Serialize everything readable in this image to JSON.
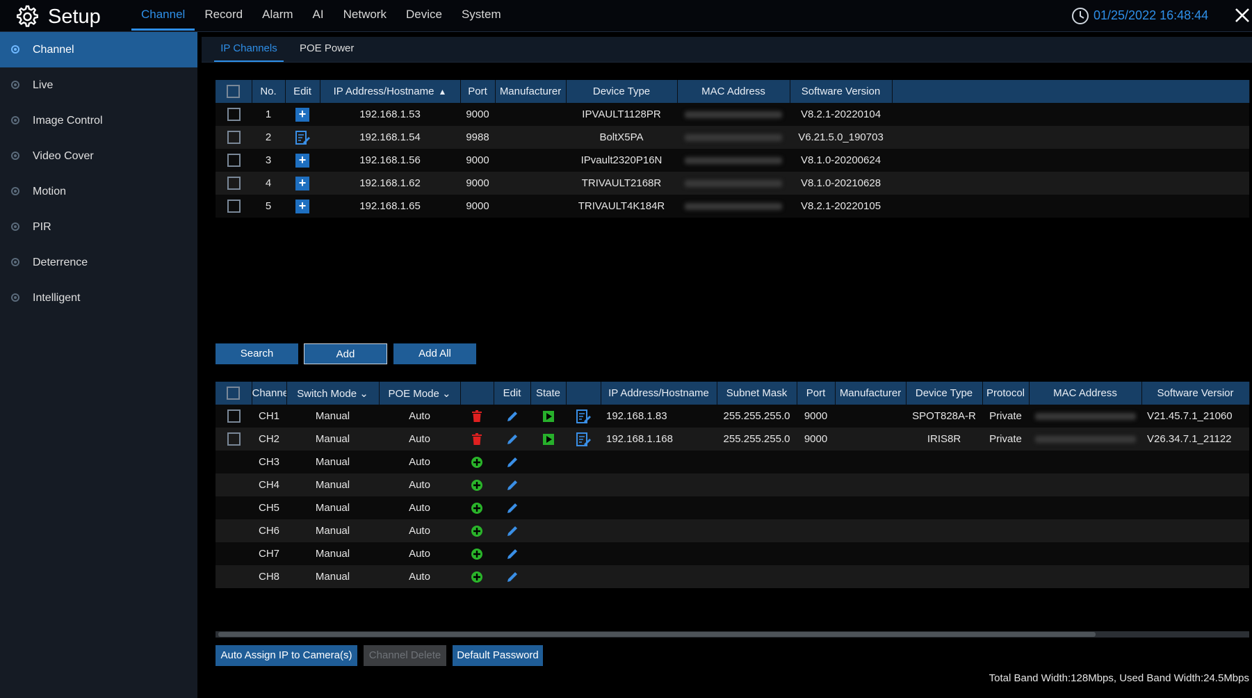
{
  "header": {
    "title": "Setup",
    "menu": [
      "Channel",
      "Record",
      "Alarm",
      "AI",
      "Network",
      "Device",
      "System"
    ],
    "active_menu": "Channel",
    "datetime": "01/25/2022 16:48:44"
  },
  "sidebar": {
    "items": [
      "Channel",
      "Live",
      "Image Control",
      "Video Cover",
      "Motion",
      "PIR",
      "Deterrence",
      "Intelligent"
    ],
    "active": "Channel"
  },
  "subtabs": {
    "items": [
      "IP Channels",
      "POE Power"
    ],
    "active": "IP Channels"
  },
  "search_table": {
    "headers": [
      "No.",
      "Edit",
      "IP Address/Hostname",
      "Port",
      "Manufacturer",
      "Device Type",
      "MAC Address",
      "Software Version"
    ],
    "rows": [
      {
        "no": "1",
        "edit": "add",
        "ip": "192.168.1.53",
        "port": "9000",
        "manufacturer": "",
        "type": "IPVAULT1128PR",
        "version": "V8.2.1-20220104"
      },
      {
        "no": "2",
        "edit": "edit",
        "ip": "192.168.1.54",
        "port": "9988",
        "manufacturer": "",
        "type": "BoltX5PA",
        "version": "V6.21.5.0_190703"
      },
      {
        "no": "3",
        "edit": "add",
        "ip": "192.168.1.56",
        "port": "9000",
        "manufacturer": "",
        "type": "IPvault2320P16N",
        "version": "V8.1.0-20200624"
      },
      {
        "no": "4",
        "edit": "add",
        "ip": "192.168.1.62",
        "port": "9000",
        "manufacturer": "",
        "type": "TRIVAULT2168R",
        "version": "V8.1.0-20210628"
      },
      {
        "no": "5",
        "edit": "add",
        "ip": "192.168.1.65",
        "port": "9000",
        "manufacturer": "",
        "type": "TRIVAULT4K184R",
        "version": "V8.2.1-20220105"
      }
    ]
  },
  "buttons": {
    "search": "Search",
    "add": "Add",
    "add_all": "Add All"
  },
  "channel_table": {
    "headers": [
      "Channel",
      "Switch Mode",
      "POE Mode",
      "",
      "Edit",
      "State",
      "",
      "IP Address/Hostname",
      "Subnet Mask",
      "Port",
      "Manufacturer",
      "Device Type",
      "Protocol",
      "MAC Address",
      "Software Versior"
    ],
    "rows": [
      {
        "ch": "CH1",
        "switch": "Manual",
        "poe": "Auto",
        "action": "delete",
        "state": "connected",
        "ip": "192.168.1.83",
        "mask": "255.255.255.0",
        "port": "9000",
        "manufacturer": "",
        "type": "SPOT828A-R",
        "protocol": "Private",
        "version": "V21.45.7.1_21060"
      },
      {
        "ch": "CH2",
        "switch": "Manual",
        "poe": "Auto",
        "action": "delete",
        "state": "connected",
        "ip": "192.168.1.168",
        "mask": "255.255.255.0",
        "port": "9000",
        "manufacturer": "",
        "type": "IRIS8R",
        "protocol": "Private",
        "version": "V26.34.7.1_21122"
      },
      {
        "ch": "CH3",
        "switch": "Manual",
        "poe": "Auto",
        "action": "add",
        "state": "",
        "ip": "",
        "mask": "",
        "port": "",
        "manufacturer": "",
        "type": "",
        "protocol": "",
        "version": ""
      },
      {
        "ch": "CH4",
        "switch": "Manual",
        "poe": "Auto",
        "action": "add",
        "state": "",
        "ip": "",
        "mask": "",
        "port": "",
        "manufacturer": "",
        "type": "",
        "protocol": "",
        "version": ""
      },
      {
        "ch": "CH5",
        "switch": "Manual",
        "poe": "Auto",
        "action": "add",
        "state": "",
        "ip": "",
        "mask": "",
        "port": "",
        "manufacturer": "",
        "type": "",
        "protocol": "",
        "version": ""
      },
      {
        "ch": "CH6",
        "switch": "Manual",
        "poe": "Auto",
        "action": "add",
        "state": "",
        "ip": "",
        "mask": "",
        "port": "",
        "manufacturer": "",
        "type": "",
        "protocol": "",
        "version": ""
      },
      {
        "ch": "CH7",
        "switch": "Manual",
        "poe": "Auto",
        "action": "add",
        "state": "",
        "ip": "",
        "mask": "",
        "port": "",
        "manufacturer": "",
        "type": "",
        "protocol": "",
        "version": ""
      },
      {
        "ch": "CH8",
        "switch": "Manual",
        "poe": "Auto",
        "action": "add",
        "state": "",
        "ip": "",
        "mask": "",
        "port": "",
        "manufacturer": "",
        "type": "",
        "protocol": "",
        "version": ""
      }
    ]
  },
  "bottom_buttons": {
    "auto_assign": "Auto Assign IP to Camera(s)",
    "channel_delete": "Channel Delete",
    "default_password": "Default Password"
  },
  "status": {
    "bandwidth": "Total Band Width:128Mbps, Used Band Width:24.5Mbps"
  },
  "colors": {
    "accent": "#2e8fe8",
    "header_bg": "#173f66",
    "active_bg": "#1f5d97",
    "delete": "#e02020",
    "add": "#2ab52a"
  },
  "icons": {
    "gear": "gear-icon",
    "clock": "clock-icon",
    "close": "close-icon",
    "add": "plus-icon",
    "edit_doc": "edit-document-icon",
    "pencil": "pencil-icon",
    "trash": "trash-icon",
    "play": "play-icon",
    "add_circle": "add-circle-icon"
  }
}
